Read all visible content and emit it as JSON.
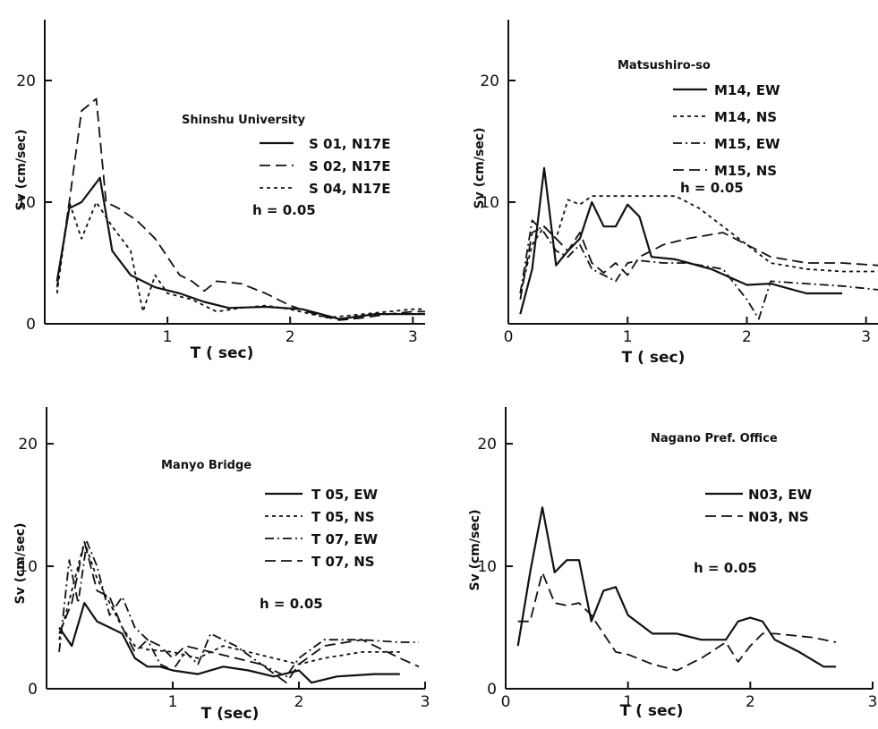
{
  "chart_data": [
    {
      "type": "line",
      "title": "Shinshu University",
      "xlabel": "T ( sec)",
      "ylabel": "Sv (cm/sec)",
      "xlim": [
        0,
        3.1
      ],
      "ylim": [
        0,
        25
      ],
      "xticks": [
        "1",
        "2",
        "3"
      ],
      "yticks": [
        "0",
        "10",
        "20"
      ],
      "annotation": "h = 0.05",
      "legend_position": "top-right",
      "series": [
        {
          "name": "S 01, N17E",
          "style": "solid",
          "x": [
            0.1,
            0.2,
            0.3,
            0.45,
            0.55,
            0.7,
            0.9,
            1.1,
            1.3,
            1.5,
            1.8,
            2.1,
            2.4,
            2.7,
            3.0,
            3.1
          ],
          "y": [
            3.5,
            9.5,
            10,
            12,
            6,
            4,
            3,
            2.5,
            1.8,
            1.3,
            1.4,
            1.2,
            0.4,
            0.8,
            0.8,
            0.8
          ]
        },
        {
          "name": "S 02, N17E",
          "style": "dashed",
          "x": [
            0.1,
            0.2,
            0.3,
            0.42,
            0.5,
            0.6,
            0.75,
            0.9,
            1.0,
            1.1,
            1.2,
            1.3,
            1.4,
            1.6,
            1.8,
            2.0,
            2.2,
            2.4,
            2.6,
            2.8,
            3.0,
            3.1
          ],
          "y": [
            3,
            10,
            17.5,
            18.5,
            10,
            9.5,
            8.5,
            7,
            5.5,
            4,
            3.5,
            2.7,
            3.5,
            3.3,
            2.5,
            1.5,
            0.8,
            0.3,
            0.5,
            0.8,
            1.0,
            1.0
          ]
        },
        {
          "name": "S 04, N17E",
          "style": "fine",
          "x": [
            0.1,
            0.2,
            0.3,
            0.42,
            0.55,
            0.7,
            0.8,
            0.9,
            1.0,
            1.2,
            1.4,
            1.6,
            1.8,
            2.0,
            2.3,
            2.6,
            3.0,
            3.1
          ],
          "y": [
            2.5,
            10,
            7,
            10,
            8,
            6,
            1,
            4,
            2.5,
            2,
            1,
            1.3,
            1.5,
            1.2,
            0.5,
            0.8,
            1.2,
            1.2
          ]
        }
      ]
    },
    {
      "type": "line",
      "title": "Matsushiro-so",
      "xlabel": "T ( sec)",
      "ylabel": "Sv (cm/sec)",
      "xlim": [
        0,
        3.1
      ],
      "ylim": [
        0,
        25
      ],
      "xticks": [
        "0",
        "1",
        "2",
        "3"
      ],
      "yticks": [
        "10",
        "20"
      ],
      "annotation": "h = 0.05",
      "legend_position": "top-right",
      "series": [
        {
          "name": "M14, EW",
          "style": "solid",
          "x": [
            0.1,
            0.2,
            0.3,
            0.4,
            0.5,
            0.6,
            0.7,
            0.8,
            0.9,
            1.0,
            1.1,
            1.2,
            1.4,
            1.7,
            2.0,
            2.2,
            2.5,
            2.8
          ],
          "y": [
            0.8,
            4.5,
            12.8,
            4.8,
            6,
            7,
            10,
            8,
            8,
            9.8,
            8.8,
            5.5,
            5.3,
            4.5,
            3.2,
            3.3,
            2.5,
            2.5
          ]
        },
        {
          "name": "M14, NS",
          "style": "fine",
          "x": [
            0.1,
            0.2,
            0.3,
            0.4,
            0.5,
            0.6,
            0.7,
            0.8,
            1.0,
            1.2,
            1.4,
            1.6,
            1.8,
            2.0,
            2.2,
            2.5,
            2.8,
            3.1
          ],
          "y": [
            2.5,
            6.5,
            8,
            7,
            10.2,
            9.8,
            10.5,
            10.5,
            10.5,
            10.5,
            10.5,
            9.5,
            8,
            6.5,
            5,
            4.5,
            4.3,
            4.3
          ]
        },
        {
          "name": "M15, EW",
          "style": "dashdot",
          "x": [
            0.1,
            0.2,
            0.3,
            0.4,
            0.5,
            0.6,
            0.7,
            0.8,
            0.9,
            1.0,
            1.1,
            1.3,
            1.5,
            1.8,
            2.0,
            2.1,
            2.2,
            2.5,
            2.8,
            3.1
          ],
          "y": [
            2.5,
            8.5,
            7.5,
            6,
            5.5,
            6.5,
            4.5,
            4,
            3.5,
            5,
            5.2,
            5,
            5,
            4.5,
            2,
            0.4,
            3.5,
            3.3,
            3.1,
            2.8
          ]
        },
        {
          "name": "M15, NS",
          "style": "dashed",
          "x": [
            0.1,
            0.2,
            0.3,
            0.4,
            0.5,
            0.6,
            0.7,
            0.8,
            0.9,
            1.0,
            1.1,
            1.3,
            1.5,
            1.8,
            2.0,
            2.2,
            2.5,
            2.8,
            3.1
          ],
          "y": [
            2,
            7.5,
            8,
            7,
            6,
            7.5,
            5,
            4.2,
            5,
            4,
            5.5,
            6.5,
            7,
            7.5,
            6.5,
            5.5,
            5,
            5,
            4.8
          ]
        }
      ]
    },
    {
      "type": "line",
      "title": "Manyo Bridge",
      "xlabel": "T (sec)",
      "ylabel": "Sv (cm/sec)",
      "xlim": [
        0,
        3.0
      ],
      "ylim": [
        0,
        23
      ],
      "xticks": [
        "1",
        "2",
        "3"
      ],
      "yticks": [
        "0",
        "10",
        "20"
      ],
      "annotation": "h = 0.05",
      "legend_position": "top-right",
      "series": [
        {
          "name": "T 05, EW",
          "style": "solid",
          "x": [
            0.1,
            0.2,
            0.3,
            0.4,
            0.5,
            0.6,
            0.7,
            0.8,
            0.9,
            1.0,
            1.2,
            1.4,
            1.6,
            1.8,
            2.0,
            2.1,
            2.3,
            2.6,
            2.8
          ],
          "y": [
            5,
            3.5,
            7,
            5.5,
            5,
            4.5,
            2.5,
            1.8,
            1.8,
            1.5,
            1.2,
            1.8,
            1.5,
            1,
            1.5,
            0.5,
            1,
            1.2,
            1.2
          ]
        },
        {
          "name": "T 05, NS",
          "style": "fine",
          "x": [
            0.1,
            0.2,
            0.3,
            0.4,
            0.5,
            0.6,
            0.7,
            0.8,
            1.0,
            1.2,
            1.4,
            1.6,
            1.8,
            2.0,
            2.2,
            2.5,
            2.8
          ],
          "y": [
            4,
            8,
            12,
            9,
            7,
            5,
            3.5,
            3.2,
            3,
            2.5,
            3.5,
            3,
            2.5,
            2,
            2.5,
            3,
            3
          ]
        },
        {
          "name": "T 07, EW",
          "style": "dashdot",
          "x": [
            0.1,
            0.18,
            0.25,
            0.32,
            0.4,
            0.5,
            0.6,
            0.7,
            0.8,
            0.9,
            1.0,
            1.1,
            1.2,
            1.3,
            1.5,
            1.7,
            1.9,
            2.0,
            2.2,
            2.5,
            2.8,
            2.95
          ],
          "y": [
            3,
            10.5,
            7,
            12,
            10,
            6,
            7.5,
            5,
            4,
            2,
            1.5,
            3,
            2,
            4.5,
            3.5,
            2,
            1,
            2.5,
            4,
            4,
            3.8,
            3.8
          ]
        },
        {
          "name": "T 07, NS",
          "style": "dashed",
          "x": [
            0.1,
            0.2,
            0.3,
            0.4,
            0.5,
            0.6,
            0.7,
            0.8,
            0.9,
            1.0,
            1.1,
            1.3,
            1.5,
            1.7,
            1.9,
            2.0,
            2.2,
            2.5,
            2.8,
            2.95
          ],
          "y": [
            4.5,
            7,
            12,
            8,
            7.5,
            5,
            3,
            4,
            3.5,
            2.5,
            3.5,
            3,
            2.5,
            2,
            0.5,
            2,
            3.5,
            4,
            2.5,
            1.8
          ]
        }
      ]
    },
    {
      "type": "line",
      "title": "Nagano Pref. Office",
      "xlabel": "T ( sec)",
      "ylabel": "Sv (cm/sec)",
      "xlim": [
        0,
        3.0
      ],
      "ylim": [
        0,
        23
      ],
      "xticks": [
        "0",
        "1",
        "2",
        "3"
      ],
      "yticks": [
        "0",
        "10",
        "20"
      ],
      "annotation": "h = 0.05",
      "legend_position": "top-right",
      "series": [
        {
          "name": "N03, EW",
          "style": "solid",
          "x": [
            0.1,
            0.2,
            0.3,
            0.4,
            0.5,
            0.6,
            0.7,
            0.8,
            0.9,
            1.0,
            1.2,
            1.4,
            1.6,
            1.8,
            1.9,
            2.0,
            2.1,
            2.2,
            2.4,
            2.6,
            2.7
          ],
          "y": [
            3.5,
            9.5,
            14.8,
            9.5,
            10.5,
            10.5,
            5.5,
            8,
            8.3,
            6,
            4.5,
            4.5,
            4,
            4,
            5.5,
            5.8,
            5.5,
            4,
            3,
            1.8,
            1.8
          ]
        },
        {
          "name": "N03, NS",
          "style": "dashed",
          "x": [
            0.1,
            0.2,
            0.3,
            0.4,
            0.5,
            0.6,
            0.7,
            0.8,
            0.9,
            1.0,
            1.2,
            1.4,
            1.6,
            1.8,
            1.9,
            2.0,
            2.1,
            2.2,
            2.5,
            2.7
          ],
          "y": [
            5.5,
            5.5,
            9.5,
            7,
            6.8,
            7,
            6,
            4.5,
            3,
            2.8,
            2,
            1.5,
            2.5,
            3.8,
            2.2,
            3.5,
            4.5,
            4.5,
            4.2,
            3.8
          ]
        }
      ]
    }
  ]
}
